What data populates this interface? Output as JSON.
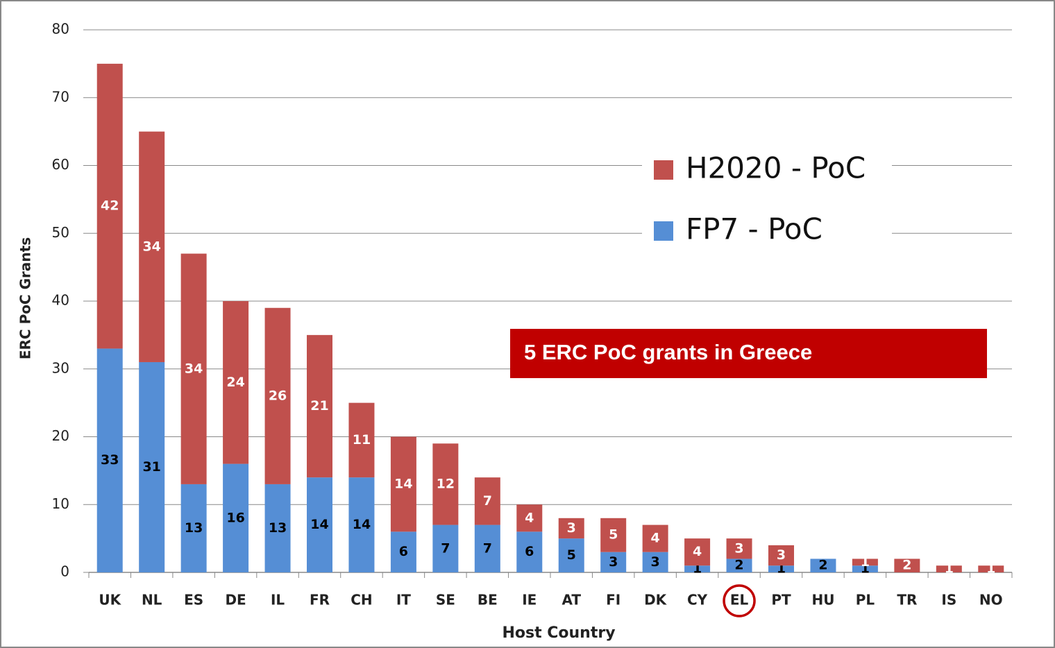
{
  "chart_data": {
    "type": "stacked-bar",
    "x_label": "Host Country",
    "y_label": "ERC PoC Grants",
    "annotation": "5 ERC PoC grants in Greece",
    "highlight": "EL",
    "categories": [
      "UK",
      "NL",
      "ES",
      "DE",
      "IL",
      "FR",
      "CH",
      "IT",
      "SE",
      "BE",
      "IE",
      "AT",
      "FI",
      "DK",
      "CY",
      "EL",
      "PT",
      "HU",
      "PL",
      "TR",
      "IS",
      "NO"
    ],
    "series": [
      {
        "name": "FP7 - PoC",
        "color": "#558ed5",
        "values": [
          33,
          31,
          13,
          16,
          13,
          14,
          14,
          6,
          7,
          7,
          6,
          5,
          3,
          3,
          1,
          2,
          1,
          2,
          1,
          0,
          0,
          0
        ]
      },
      {
        "name": "H2020 - PoC",
        "color": "#c0504d",
        "values": [
          42,
          34,
          34,
          24,
          26,
          21,
          11,
          14,
          12,
          7,
          4,
          3,
          5,
          4,
          4,
          3,
          3,
          0,
          1,
          2,
          1,
          1
        ]
      }
    ],
    "ylim": [
      0,
      80
    ],
    "yticks": [
      0,
      10,
      20,
      30,
      40,
      50,
      60,
      70,
      80
    ],
    "grid": true
  }
}
